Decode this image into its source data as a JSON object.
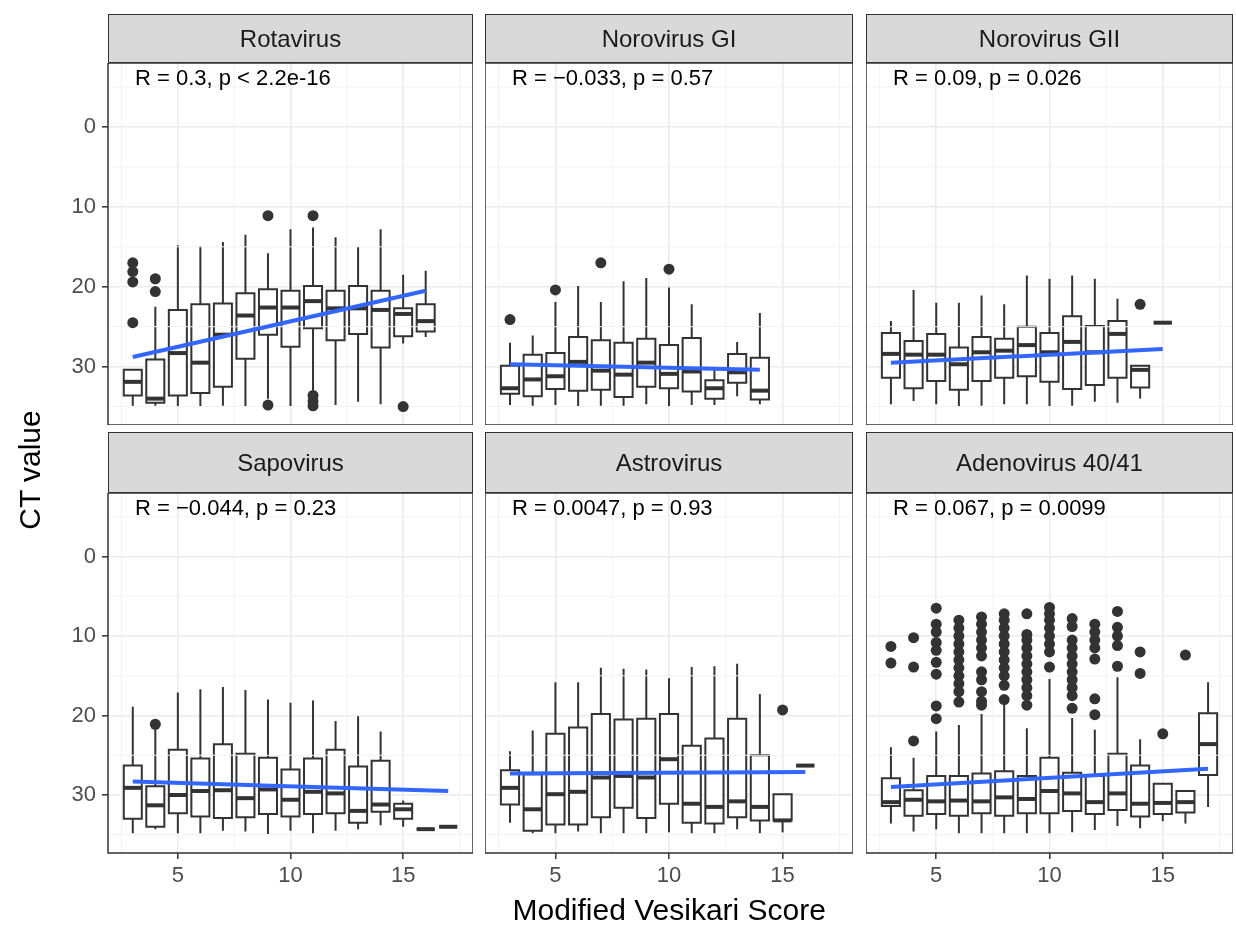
{
  "chart_data": [
    {
      "type": "box",
      "color": "#333333",
      "title": "Rotavirus",
      "ylabel": "CT value",
      "annotations": [
        "R = 0.3, p < 2.2e-16"
      ],
      "grid": true,
      "tick_labels": "y",
      "xlim": [
        1.9,
        18.1
      ],
      "xticks": [
        5,
        10,
        15
      ],
      "ylim": [
        37.3,
        -8
      ],
      "yticks": [
        0,
        10,
        20,
        30
      ],
      "x": [
        3,
        4,
        5,
        6,
        7,
        8,
        9,
        10,
        11,
        12,
        13,
        14,
        15,
        16
      ],
      "boxes": [
        {
          "low": 30.4,
          "q1": 30.4,
          "median": 31.9,
          "q3": 33.6,
          "high": 34.9,
          "outliers": [
            17,
            18.1,
            19.4,
            24.5
          ]
        },
        {
          "low": 22.5,
          "q1": 29.1,
          "median": 34,
          "q3": 34.5,
          "high": 34.9,
          "outliers": [
            19,
            20.6
          ]
        },
        {
          "low": 14.8,
          "q1": 22.9,
          "median": 28.3,
          "q3": 33.6,
          "high": 35
        },
        {
          "low": 14.9,
          "q1": 22.2,
          "median": 29.5,
          "q3": 33.3,
          "high": 35
        },
        {
          "low": 14.4,
          "q1": 22.1,
          "median": 26,
          "q3": 32.5,
          "high": 34.9
        },
        {
          "low": 13.5,
          "q1": 20.8,
          "median": 23.6,
          "q3": 29,
          "high": 35
        },
        {
          "low": 15.8,
          "q1": 20.3,
          "median": 22.6,
          "q3": 26,
          "high": 34,
          "outliers": [
            11.1,
            34.8
          ]
        },
        {
          "low": 12.8,
          "q1": 20.5,
          "median": 22.6,
          "q3": 27.5,
          "high": 35
        },
        {
          "low": 12.6,
          "q1": 19.9,
          "median": 21.8,
          "q3": 25.2,
          "high": 33.4,
          "outliers": [
            11.1,
            33.6,
            34.3,
            34.9
          ]
        },
        {
          "low": 13.8,
          "q1": 20.5,
          "median": 22.7,
          "q3": 26.7,
          "high": 34.8
        },
        {
          "low": 15,
          "q1": 19.9,
          "median": 22.7,
          "q3": 25.9,
          "high": 34.4
        },
        {
          "low": 12.8,
          "q1": 20.5,
          "median": 22.9,
          "q3": 27.6,
          "high": 34.7
        },
        {
          "low": 18.5,
          "q1": 22.7,
          "median": 23.4,
          "q3": 26.2,
          "high": 27.1,
          "outliers": [
            35
          ]
        },
        {
          "low": 18,
          "q1": 22.2,
          "median": 24.3,
          "q3": 25.6,
          "high": 26.3
        }
      ],
      "series": [
        {
          "type": "line",
          "color": "#3366ff",
          "x": [
            3,
            16
          ],
          "values": [
            28.8,
            20.5
          ]
        }
      ]
    },
    {
      "type": "box",
      "color": "#333333",
      "title": "Norovirus GI",
      "annotations": [
        "R = −0.033, p = 0.57"
      ],
      "grid": true,
      "tick_labels": false,
      "xlim": [
        1.9,
        18.1
      ],
      "xticks": [
        5,
        10,
        15
      ],
      "ylim": [
        37.3,
        -8
      ],
      "yticks": [
        0,
        10,
        20,
        30
      ],
      "x": [
        3,
        4,
        5,
        6,
        7,
        8,
        9,
        10,
        11,
        12,
        13,
        14
      ],
      "boxes": [
        {
          "low": 27,
          "q1": 29.9,
          "median": 32.7,
          "q3": 33.4,
          "high": 34.8,
          "outliers": [
            24.1
          ]
        },
        {
          "low": 26.1,
          "q1": 28.5,
          "median": 31.6,
          "q3": 33.7,
          "high": 34.9
        },
        {
          "low": 21.9,
          "q1": 28.3,
          "median": 31.2,
          "q3": 32.8,
          "high": 34.8,
          "outliers": [
            20.4
          ]
        },
        {
          "low": 19.9,
          "q1": 26.3,
          "median": 29.4,
          "q3": 33,
          "high": 35
        },
        {
          "low": 21.9,
          "q1": 26.7,
          "median": 30.5,
          "q3": 32.9,
          "high": 34.9,
          "outliers": [
            17
          ]
        },
        {
          "low": 19.3,
          "q1": 27,
          "median": 31,
          "q3": 33.8,
          "high": 34.9
        },
        {
          "low": 18.9,
          "q1": 26.5,
          "median": 29.5,
          "q3": 32.5,
          "high": 34.7
        },
        {
          "low": 20.1,
          "q1": 27.3,
          "median": 30.9,
          "q3": 32.7,
          "high": 35,
          "outliers": [
            17.8
          ]
        },
        {
          "low": 22.2,
          "q1": 26.4,
          "median": 30.6,
          "q3": 33.1,
          "high": 34.8
        },
        {
          "low": 30.4,
          "q1": 31.7,
          "median": 32.7,
          "q3": 34,
          "high": 34.8
        },
        {
          "low": 26.9,
          "q1": 28.4,
          "median": 30.7,
          "q3": 32,
          "high": 33.7
        },
        {
          "low": 23.3,
          "q1": 28.9,
          "median": 33,
          "q3": 34.1,
          "high": 34.7
        }
      ],
      "series": [
        {
          "type": "line",
          "color": "#3366ff",
          "x": [
            3,
            14
          ],
          "values": [
            29.7,
            30.4
          ]
        }
      ]
    },
    {
      "type": "box",
      "color": "#333333",
      "title": "Norovirus GII",
      "annotations": [
        "R = 0.09, p = 0.026"
      ],
      "grid": true,
      "tick_labels": false,
      "xlim": [
        1.9,
        18.1
      ],
      "xticks": [
        5,
        10,
        15
      ],
      "ylim": [
        37.3,
        -8
      ],
      "yticks": [
        0,
        10,
        20,
        30
      ],
      "x": [
        3,
        4,
        5,
        6,
        7,
        8,
        9,
        10,
        11,
        12,
        13,
        14,
        15
      ],
      "boxes": [
        {
          "low": 24.3,
          "q1": 25.8,
          "median": 28.4,
          "q3": 31.4,
          "high": 34.7
        },
        {
          "low": 20.4,
          "q1": 26.8,
          "median": 28.5,
          "q3": 32.7,
          "high": 34.3
        },
        {
          "low": 22,
          "q1": 25.9,
          "median": 28.5,
          "q3": 31.8,
          "high": 34.7
        },
        {
          "low": 22,
          "q1": 27.6,
          "median": 29.7,
          "q3": 32.9,
          "high": 35
        },
        {
          "low": 21.1,
          "q1": 26.3,
          "median": 28.2,
          "q3": 31.8,
          "high": 34.9
        },
        {
          "low": 22.2,
          "q1": 26.5,
          "median": 28,
          "q3": 31.4,
          "high": 34.7
        },
        {
          "low": 18.6,
          "q1": 25,
          "median": 27.3,
          "q3": 31.2,
          "high": 34.7
        },
        {
          "low": 19,
          "q1": 25.8,
          "median": 28.2,
          "q3": 31.9,
          "high": 35
        },
        {
          "low": 18.6,
          "q1": 23.7,
          "median": 26.9,
          "q3": 32.8,
          "high": 34.9
        },
        {
          "low": 19,
          "q1": 24.9,
          "median": 28.2,
          "q3": 32.3,
          "high": 34.4
        },
        {
          "low": 21.5,
          "q1": 24.3,
          "median": 25.9,
          "q3": 31.4,
          "high": 34.5
        },
        {
          "low": 29.9,
          "q1": 29.9,
          "median": 30.4,
          "q3": 32.6,
          "high": 34,
          "outliers": [
            22.2
          ]
        },
        {
          "low": 24.5,
          "q1": 24.5,
          "median": 24.5,
          "q3": 24.5,
          "high": 24.5
        }
      ],
      "series": [
        {
          "type": "line",
          "color": "#3366ff",
          "x": [
            3,
            15
          ],
          "values": [
            29.5,
            27.8
          ]
        }
      ]
    },
    {
      "type": "box",
      "color": "#333333",
      "title": "Sapovirus",
      "annotations": [
        "R = −0.044, p = 0.23"
      ],
      "grid": true,
      "xlim": [
        1.9,
        18.1
      ],
      "xticks": [
        5,
        10,
        15
      ],
      "ylim": [
        37.3,
        -8
      ],
      "yticks": [
        0,
        10,
        20,
        30
      ],
      "x": [
        3,
        4,
        5,
        6,
        7,
        8,
        9,
        10,
        11,
        12,
        13,
        14,
        15,
        16,
        17
      ],
      "boxes": [
        {
          "low": 18.9,
          "q1": 26.3,
          "median": 29.1,
          "q3": 33,
          "high": 34.8
        },
        {
          "low": 21.6,
          "q1": 28.9,
          "median": 31.3,
          "q3": 34,
          "high": 34.3,
          "outliers": [
            21.1
          ]
        },
        {
          "low": 17.1,
          "q1": 24.3,
          "median": 30,
          "q3": 32.3,
          "high": 34.8
        },
        {
          "low": 16.7,
          "q1": 25.4,
          "median": 29.5,
          "q3": 32.7,
          "high": 34.8
        },
        {
          "low": 16.4,
          "q1": 23.6,
          "median": 29.4,
          "q3": 32.9,
          "high": 34.5
        },
        {
          "low": 16.8,
          "q1": 24.8,
          "median": 30.4,
          "q3": 32.8,
          "high": 34.6
        },
        {
          "low": 18,
          "q1": 25.3,
          "median": 29.3,
          "q3": 32.4,
          "high": 34.9
        },
        {
          "low": 18.4,
          "q1": 26.8,
          "median": 30.6,
          "q3": 32.7,
          "high": 34.5
        },
        {
          "low": 18.1,
          "q1": 25.4,
          "median": 29.6,
          "q3": 32.4,
          "high": 34.8
        },
        {
          "low": 20.7,
          "q1": 24.3,
          "median": 29.8,
          "q3": 32.3,
          "high": 34.5
        },
        {
          "low": 20.1,
          "q1": 26.4,
          "median": 32,
          "q3": 33.5,
          "high": 34.3
        },
        {
          "low": 22,
          "q1": 25.7,
          "median": 31.2,
          "q3": 32.1,
          "high": 33.8
        },
        {
          "low": 30.7,
          "q1": 31.1,
          "median": 31.8,
          "q3": 33,
          "high": 34
        },
        {
          "low": 34.3,
          "q1": 34.3,
          "median": 34.3,
          "q3": 34.3,
          "high": 34.3
        },
        {
          "low": 34,
          "q1": 34,
          "median": 34,
          "q3": 34,
          "high": 34
        }
      ],
      "series": [
        {
          "type": "line",
          "color": "#3366ff",
          "x": [
            3,
            17
          ],
          "values": [
            28.3,
            29.5
          ]
        }
      ]
    },
    {
      "type": "box",
      "color": "#333333",
      "title": "Astrovirus",
      "xlabel": "Modified Vesikari Score",
      "annotations": [
        "R = 0.0047, p = 0.93"
      ],
      "grid": true,
      "tick_labels": "x",
      "xlim": [
        1.9,
        18.1
      ],
      "xticks": [
        5,
        10,
        15
      ],
      "ylim": [
        37.3,
        -8
      ],
      "yticks": [
        0,
        10,
        20,
        30
      ],
      "x": [
        3,
        4,
        5,
        6,
        7,
        8,
        9,
        10,
        11,
        12,
        13,
        14,
        15,
        16
      ],
      "boxes": [
        {
          "low": 24.5,
          "q1": 26.9,
          "median": 29.1,
          "q3": 31.2,
          "high": 33.5
        },
        {
          "low": 21.9,
          "q1": 27.4,
          "median": 31.8,
          "q3": 34.5,
          "high": 34.8
        },
        {
          "low": 15.8,
          "q1": 22.3,
          "median": 29.9,
          "q3": 33.7,
          "high": 34.8
        },
        {
          "low": 15.8,
          "q1": 21.5,
          "median": 29.6,
          "q3": 33.7,
          "high": 34.6
        },
        {
          "low": 14,
          "q1": 19.8,
          "median": 27.8,
          "q3": 32.8,
          "high": 34.8
        },
        {
          "low": 14.1,
          "q1": 20.5,
          "median": 27.6,
          "q3": 31.6,
          "high": 34.8
        },
        {
          "low": 14.2,
          "q1": 20.4,
          "median": 27.8,
          "q3": 32.9,
          "high": 34.8
        },
        {
          "low": 15.3,
          "q1": 19.8,
          "median": 25.5,
          "q3": 31.1,
          "high": 34.7
        },
        {
          "low": 13.9,
          "q1": 23.8,
          "median": 31.1,
          "q3": 33.5,
          "high": 34.8
        },
        {
          "low": 13.8,
          "q1": 22.9,
          "median": 31.5,
          "q3": 33.6,
          "high": 34.8
        },
        {
          "low": 13.5,
          "q1": 20.4,
          "median": 30.8,
          "q3": 32.8,
          "high": 34.3
        },
        {
          "low": 17.3,
          "q1": 25,
          "median": 31.5,
          "q3": 33.2,
          "high": 34.8
        },
        {
          "low": 29.9,
          "q1": 29.9,
          "median": 33.2,
          "q3": 33.2,
          "high": 34.7,
          "outliers": [
            19.3
          ]
        },
        {
          "low": 26.3,
          "q1": 26.3,
          "median": 26.3,
          "q3": 26.3,
          "high": 26.3
        }
      ],
      "series": [
        {
          "type": "line",
          "color": "#3366ff",
          "x": [
            3,
            16
          ],
          "values": [
            27.3,
            27.1
          ]
        }
      ]
    },
    {
      "type": "box",
      "color": "#333333",
      "title": "Adenovirus 40/41",
      "annotations": [
        "R = 0.067, p = 0.0099"
      ],
      "grid": true,
      "tick_labels": "x",
      "xlim": [
        1.9,
        18.1
      ],
      "xticks": [
        5,
        10,
        15
      ],
      "ylim": [
        37.3,
        -8
      ],
      "yticks": [
        0,
        10,
        20,
        30
      ],
      "x": [
        3,
        4,
        5,
        6,
        7,
        8,
        9,
        10,
        11,
        12,
        13,
        14,
        15,
        16,
        17
      ],
      "boxes": [
        {
          "low": 24,
          "q1": 27.9,
          "median": 30.9,
          "q3": 31.4,
          "high": 33.6,
          "outliers": [
            11.3,
            13.4
          ]
        },
        {
          "low": 25.3,
          "q1": 29.4,
          "median": 30.6,
          "q3": 32.6,
          "high": 34.6,
          "outliers": [
            10.2,
            13.9,
            23.2
          ]
        },
        {
          "low": 22,
          "q1": 27.6,
          "median": 30.8,
          "q3": 32.4,
          "high": 34.3,
          "outliers": [
            6.5,
            8.5,
            9.5,
            10.8,
            11.8,
            13.3,
            14.8,
            18.8,
            20.4
          ]
        },
        {
          "low": 21.2,
          "q1": 27.6,
          "median": 30.7,
          "q3": 32.6,
          "high": 34.8,
          "outliers": [
            8,
            9,
            10,
            11,
            12,
            13,
            14,
            15,
            16,
            17,
            18.3
          ]
        },
        {
          "low": 19.8,
          "q1": 27.3,
          "median": 30.8,
          "q3": 32.3,
          "high": 34.8,
          "outliers": [
            7.6,
            8.5,
            9.5,
            10.5,
            11.5,
            12.5,
            14.5,
            15.5,
            17,
            18.2,
            18.7
          ]
        },
        {
          "low": 18.5,
          "q1": 27,
          "median": 30.3,
          "q3": 32.6,
          "high": 34.8,
          "outliers": [
            7.2,
            8,
            9,
            10,
            11,
            12,
            13,
            14,
            15,
            16.2,
            18
          ]
        },
        {
          "low": 21.6,
          "q1": 27.6,
          "median": 30.5,
          "q3": 32.3,
          "high": 34.8,
          "outliers": [
            7.2,
            9.8,
            10.5,
            11.5,
            12.5,
            13.5,
            14.5,
            15.5,
            16.5,
            17.5,
            18.7
          ]
        },
        {
          "low": 15.4,
          "q1": 25.3,
          "median": 29.5,
          "q3": 32.3,
          "high": 34.8,
          "outliers": [
            6.4,
            7.2,
            8,
            9,
            10,
            11,
            12,
            13.9
          ]
        },
        {
          "low": 20.3,
          "q1": 27.2,
          "median": 29.8,
          "q3": 32,
          "high": 34.7,
          "outliers": [
            7.8,
            8.8,
            10.5,
            11.5,
            12.5,
            13.5,
            14.5,
            15.5,
            16.5,
            17.5,
            19.1
          ]
        },
        {
          "low": 21.8,
          "q1": 27.6,
          "median": 30.9,
          "q3": 32.4,
          "high": 34.4,
          "outliers": [
            8.5,
            9.5,
            10.5,
            11.5,
            12.9,
            17.9,
            19.9
          ]
        },
        {
          "low": 15.2,
          "q1": 24.8,
          "median": 29.8,
          "q3": 31.9,
          "high": 33.9,
          "outliers": [
            6.9,
            8.9,
            10,
            11.2,
            13.8
          ]
        },
        {
          "low": 23,
          "q1": 26.3,
          "median": 31.1,
          "q3": 32.7,
          "high": 34.2,
          "outliers": [
            12,
            14.7
          ]
        },
        {
          "low": 28.6,
          "q1": 28.6,
          "median": 31,
          "q3": 32.4,
          "high": 33.3,
          "outliers": [
            22.3
          ]
        },
        {
          "low": 29.5,
          "q1": 29.5,
          "median": 30.9,
          "q3": 32.2,
          "high": 33.6,
          "outliers": [
            12.4
          ]
        },
        {
          "low": 15.8,
          "q1": 19.7,
          "median": 23.6,
          "q3": 27.5,
          "high": 31.5
        }
      ],
      "series": [
        {
          "type": "line",
          "color": "#3366ff",
          "x": [
            3,
            17
          ],
          "values": [
            29,
            26.7
          ]
        }
      ]
    }
  ]
}
